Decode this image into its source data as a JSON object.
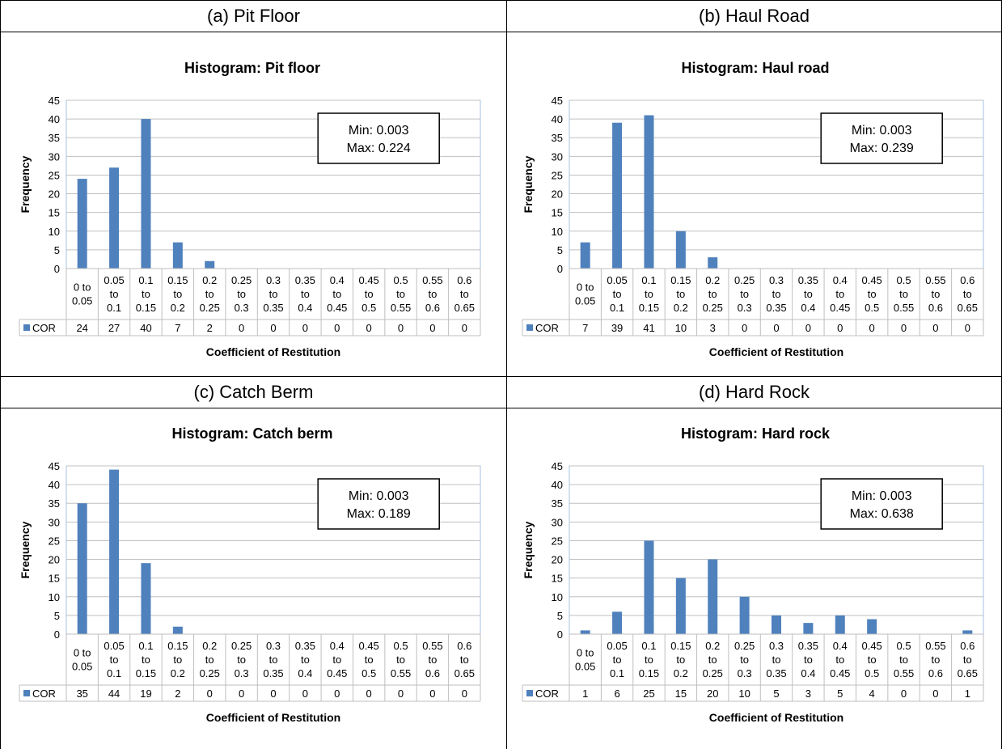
{
  "panels": [
    {
      "label": "(a) Pit Floor"
    },
    {
      "label": "(b) Haul Road"
    },
    {
      "label": "(c) Catch Berm"
    },
    {
      "label": "(d) Hard Rock"
    }
  ],
  "colors": {
    "bar": "#4f81bd",
    "grid": "#c0c0c0",
    "plot_border": "#a6c0e0"
  },
  "chart_data": [
    {
      "type": "bar",
      "title": "Histogram: Pit floor",
      "xlabel": "Coefficient of Restitution",
      "ylabel": "Frequency",
      "ylim": [
        0,
        45
      ],
      "yticks": [
        "0",
        "5",
        "10",
        "15",
        "20",
        "25",
        "30",
        "35",
        "40",
        "45"
      ],
      "categories": [
        [
          "0 to",
          "0.05"
        ],
        [
          "0.05",
          "to",
          "0.1"
        ],
        [
          "0.1",
          "to",
          "0.15"
        ],
        [
          "0.15",
          "to",
          "0.2"
        ],
        [
          "0.2",
          "to",
          "0.25"
        ],
        [
          "0.25",
          "to",
          "0.3"
        ],
        [
          "0.3",
          "to",
          "0.35"
        ],
        [
          "0.35",
          "to",
          "0.4"
        ],
        [
          "0.4",
          "to",
          "0.45"
        ],
        [
          "0.45",
          "to",
          "0.5"
        ],
        [
          "0.5",
          "to",
          "0.55"
        ],
        [
          "0.55",
          "to",
          "0.6"
        ],
        [
          "0.6",
          "to",
          "0.65"
        ]
      ],
      "series": [
        {
          "name": "COR",
          "values": [
            24,
            27,
            40,
            7,
            2,
            0,
            0,
            0,
            0,
            0,
            0,
            0,
            0
          ]
        }
      ],
      "data_table": true,
      "annotation": [
        "Min: 0.003",
        "Max: 0.224"
      ]
    },
    {
      "type": "bar",
      "title": "Histogram: Haul road",
      "xlabel": "Coefficient of Restitution",
      "ylabel": "Frequency",
      "ylim": [
        0,
        45
      ],
      "yticks": [
        "0",
        "5",
        "10",
        "15",
        "20",
        "25",
        "30",
        "35",
        "40",
        "45"
      ],
      "categories": [
        [
          "0 to",
          "0.05"
        ],
        [
          "0.05",
          "to",
          "0.1"
        ],
        [
          "0.1",
          "to",
          "0.15"
        ],
        [
          "0.15",
          "to",
          "0.2"
        ],
        [
          "0.2",
          "to",
          "0.25"
        ],
        [
          "0.25",
          "to",
          "0.3"
        ],
        [
          "0.3",
          "to",
          "0.35"
        ],
        [
          "0.35",
          "to",
          "0.4"
        ],
        [
          "0.4",
          "to",
          "0.45"
        ],
        [
          "0.45",
          "to",
          "0.5"
        ],
        [
          "0.5",
          "to",
          "0.55"
        ],
        [
          "0.55",
          "to",
          "0.6"
        ],
        [
          "0.6",
          "to",
          "0.65"
        ]
      ],
      "series": [
        {
          "name": "COR",
          "values": [
            7,
            39,
            41,
            10,
            3,
            0,
            0,
            0,
            0,
            0,
            0,
            0,
            0
          ]
        }
      ],
      "data_table": true,
      "annotation": [
        "Min: 0.003",
        "Max: 0.239"
      ]
    },
    {
      "type": "bar",
      "title": "Histogram: Catch berm",
      "xlabel": "Coefficient of Restitution",
      "ylabel": "Frequency",
      "ylim": [
        0,
        45
      ],
      "yticks": [
        "0",
        "5",
        "10",
        "15",
        "20",
        "25",
        "30",
        "35",
        "40",
        "45"
      ],
      "categories": [
        [
          "0 to",
          "0.05"
        ],
        [
          "0.05",
          "to",
          "0.1"
        ],
        [
          "0.1",
          "to",
          "0.15"
        ],
        [
          "0.15",
          "to",
          "0.2"
        ],
        [
          "0.2",
          "to",
          "0.25"
        ],
        [
          "0.25",
          "to",
          "0.3"
        ],
        [
          "0.3",
          "to",
          "0.35"
        ],
        [
          "0.35",
          "to",
          "0.4"
        ],
        [
          "0.4",
          "to",
          "0.45"
        ],
        [
          "0.45",
          "to",
          "0.5"
        ],
        [
          "0.5",
          "to",
          "0.55"
        ],
        [
          "0.55",
          "to",
          "0.6"
        ],
        [
          "0.6",
          "to",
          "0.65"
        ]
      ],
      "series": [
        {
          "name": "COR",
          "values": [
            35,
            44,
            19,
            2,
            0,
            0,
            0,
            0,
            0,
            0,
            0,
            0,
            0
          ]
        }
      ],
      "data_table": true,
      "annotation": [
        "Min: 0.003",
        "Max: 0.189"
      ]
    },
    {
      "type": "bar",
      "title": "Histogram: Hard rock",
      "xlabel": "Coefficient of Restitution",
      "ylabel": "Frequency",
      "ylim": [
        0,
        45
      ],
      "yticks": [
        "0",
        "5",
        "10",
        "15",
        "20",
        "25",
        "30",
        "35",
        "40",
        "45"
      ],
      "categories": [
        [
          "0 to",
          "0.05"
        ],
        [
          "0.05",
          "to",
          "0.1"
        ],
        [
          "0.1",
          "to",
          "0.15"
        ],
        [
          "0.15",
          "to",
          "0.2"
        ],
        [
          "0.2",
          "to",
          "0.25"
        ],
        [
          "0.25",
          "to",
          "0.3"
        ],
        [
          "0.3",
          "to",
          "0.35"
        ],
        [
          "0.35",
          "to",
          "0.4"
        ],
        [
          "0.4",
          "to",
          "0.45"
        ],
        [
          "0.45",
          "to",
          "0.5"
        ],
        [
          "0.5",
          "to",
          "0.55"
        ],
        [
          "0.55",
          "to",
          "0.6"
        ],
        [
          "0.6",
          "to",
          "0.65"
        ]
      ],
      "series": [
        {
          "name": "COR",
          "values": [
            1,
            6,
            25,
            15,
            20,
            10,
            5,
            3,
            5,
            4,
            0,
            0,
            1
          ]
        }
      ],
      "data_table": true,
      "annotation": [
        "Min: 0.003",
        "Max: 0.638"
      ]
    }
  ]
}
